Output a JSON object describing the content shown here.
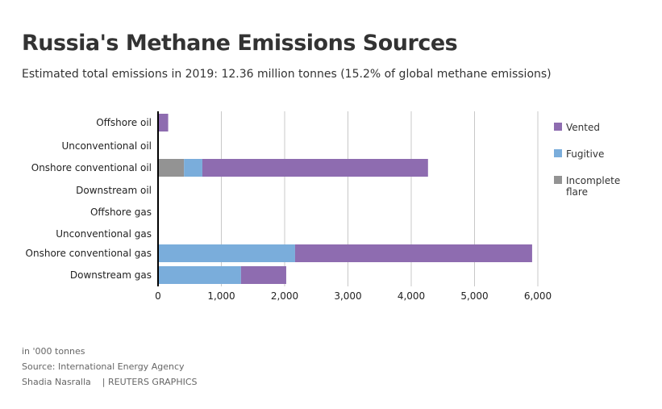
{
  "title": "Russia's Methane Emissions Sources",
  "subtitle": "Estimated total emissions in 2019: 12.36 million tonnes (15.2% of global methane emissions)",
  "footer": {
    "units": "in '000 tonnes",
    "source": "Source: International Energy Agency",
    "author": "Shadia Nasralla",
    "credit": "| REUTERS GRAPHICS"
  },
  "chart_data": {
    "type": "bar",
    "orientation": "horizontal",
    "stacked": true,
    "categories": [
      "Offshore oil",
      "Unconventional oil",
      "Onshore conventional oil",
      "Downstream oil",
      "Offshore gas",
      "Unconventional gas",
      "Onshore conventional gas",
      "Downstream gas"
    ],
    "series": [
      {
        "name": "Incomplete flare",
        "color": "#939393",
        "values": [
          0,
          0,
          410,
          0,
          0,
          0,
          0,
          0
        ]
      },
      {
        "name": "Fugitive",
        "color": "#7aaddb",
        "values": [
          10,
          0,
          290,
          0,
          0,
          0,
          2165,
          1310
        ]
      },
      {
        "name": "Vented",
        "color": "#8e6cb0",
        "values": [
          150,
          0,
          3565,
          0,
          0,
          0,
          3745,
          715
        ]
      }
    ],
    "legend": [
      "Vented",
      "Fugitive",
      "Incomplete flare"
    ],
    "legend_placement": "right",
    "xlim": [
      0,
      6000
    ],
    "xticks": [
      0,
      1000,
      2000,
      3000,
      4000,
      5000,
      6000
    ],
    "xtick_labels": [
      "0",
      "1,000",
      "2,000",
      "3,000",
      "4,000",
      "5,000",
      "6,000"
    ],
    "xlabel": "",
    "ylabel": "",
    "grid": true
  }
}
